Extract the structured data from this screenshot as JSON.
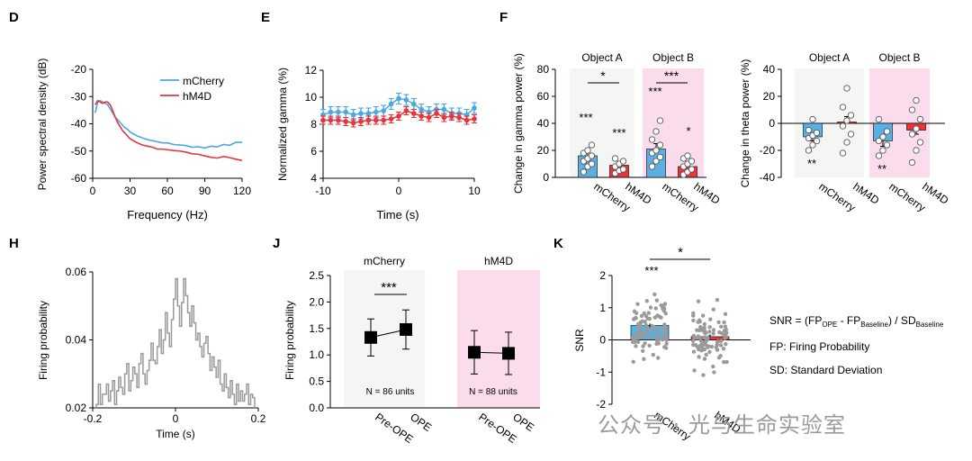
{
  "panel_letters": {
    "D": "D",
    "E": "E",
    "F": "F",
    "H": "H",
    "J": "J",
    "K": "K"
  },
  "chart_data": [
    {
      "id": "D",
      "type": "line",
      "xlabel": "Frequency (Hz)",
      "ylabel": "Power spectral density (dB)",
      "xlim": [
        0,
        120
      ],
      "ylim": [
        -60,
        -20
      ],
      "xticks": [
        "0",
        "30",
        "60",
        "90",
        "120"
      ],
      "yticks": [
        "-20",
        "-30",
        "-40",
        "-50",
        "-60"
      ],
      "legend": [
        "mCherry",
        "hM4D"
      ],
      "legend_position": "top-right",
      "colors": {
        "mCherry": "#4aa8e6",
        "hM4D": "#e8343b"
      },
      "series": [
        {
          "name": "mCherry",
          "x": [
            2,
            4,
            6,
            8,
            10,
            12,
            14,
            16,
            18,
            20,
            22,
            24,
            26,
            28,
            30,
            33,
            36,
            40,
            44,
            48,
            52,
            56,
            60,
            65,
            70,
            75,
            80,
            85,
            90,
            95,
            100,
            105,
            110,
            115,
            120
          ],
          "y": [
            -36,
            -32,
            -31.5,
            -32,
            -32.5,
            -33,
            -34.5,
            -36,
            -37.5,
            -38.5,
            -39.5,
            -40.5,
            -41.5,
            -42,
            -43,
            -43.8,
            -44.5,
            -45.2,
            -45.8,
            -46.2,
            -46.6,
            -47,
            -47,
            -47.6,
            -47.8,
            -48,
            -48.6,
            -48.4,
            -48.9,
            -48.2,
            -48.5,
            -47.6,
            -47.9,
            -46.8,
            -46.8
          ]
        },
        {
          "name": "hM4D",
          "x": [
            2,
            4,
            6,
            8,
            10,
            12,
            14,
            16,
            18,
            20,
            22,
            24,
            26,
            28,
            30,
            33,
            36,
            40,
            44,
            48,
            52,
            56,
            60,
            65,
            70,
            75,
            80,
            85,
            90,
            95,
            100,
            105,
            110,
            115,
            120
          ],
          "y": [
            -33,
            -31.5,
            -32,
            -32.5,
            -32,
            -32,
            -33,
            -35,
            -37.5,
            -39.5,
            -41,
            -42.5,
            -43.5,
            -44.5,
            -45.5,
            -46.3,
            -47,
            -47.8,
            -48.2,
            -48.6,
            -49.3,
            -49.3,
            -49.5,
            -49.8,
            -50,
            -50.4,
            -51,
            -51.2,
            -51.8,
            -52.3,
            -52.6,
            -52,
            -52.4,
            -53,
            -53.5
          ]
        }
      ]
    },
    {
      "id": "E",
      "type": "line",
      "xlabel": "Time (s)",
      "ylabel": "Normalized gamma (%)",
      "xlim": [
        -10,
        10
      ],
      "ylim": [
        4,
        12
      ],
      "xticks": [
        "-10",
        "0",
        "10"
      ],
      "yticks": [
        "12",
        "10",
        "8",
        "6",
        "4"
      ],
      "colors": {
        "mCherry": "#4aa8e6",
        "hM4D": "#e8343b"
      },
      "series": [
        {
          "name": "mCherry",
          "x": [
            -10,
            -9,
            -8,
            -7,
            -6,
            -5,
            -4,
            -3,
            -2,
            -1,
            0,
            1,
            2,
            3,
            4,
            5,
            6,
            7,
            8,
            9,
            10
          ],
          "y": [
            8.7,
            8.9,
            8.9,
            8.9,
            8.7,
            8.8,
            8.8,
            8.9,
            9.0,
            9.5,
            9.9,
            9.8,
            9.5,
            9.1,
            8.9,
            9.1,
            9.1,
            8.8,
            8.8,
            8.7,
            9.2
          ],
          "err": 0.4
        },
        {
          "name": "hM4D",
          "x": [
            -10,
            -9,
            -8,
            -7,
            -6,
            -5,
            -4,
            -3,
            -2,
            -1,
            0,
            1,
            2,
            3,
            4,
            5,
            6,
            7,
            8,
            9,
            10
          ],
          "y": [
            8.3,
            8.3,
            8.3,
            8.2,
            8.1,
            8.2,
            8.3,
            8.3,
            8.3,
            8.4,
            8.6,
            9.0,
            8.8,
            8.6,
            8.5,
            8.8,
            8.5,
            8.6,
            8.5,
            8.3,
            8.4
          ],
          "err": 0.3
        }
      ]
    },
    {
      "id": "F-gamma",
      "type": "bar",
      "ylabel": "Change in  gamma power (%)",
      "ylim": [
        0,
        80
      ],
      "yticks": [
        "80",
        "60",
        "40",
        "20",
        "0"
      ],
      "groups": [
        "Object  A",
        "Object B"
      ],
      "categories": [
        "mCherry",
        "hM4D",
        "mCherry",
        "hM4D"
      ],
      "values": [
        16,
        9,
        21,
        8
      ],
      "errors": [
        3,
        2,
        4,
        2
      ],
      "points": [
        [
          4,
          8,
          10,
          12,
          14,
          16,
          18,
          20,
          24
        ],
        [
          3,
          5,
          6,
          8,
          10,
          12,
          14
        ],
        [
          8,
          12,
          15,
          18,
          20,
          24,
          28,
          34,
          42
        ],
        [
          2,
          4,
          6,
          8,
          10,
          12,
          14,
          16
        ]
      ],
      "sig_top": [
        "*",
        "***"
      ],
      "sig_bar": [
        "***",
        "***",
        "***",
        "*"
      ],
      "colors": {
        "mCherry": "#5ab0e3",
        "hM4D": "#e8343b",
        "shade_A": "#f3f6f3",
        "shade_B": "#fadcec"
      }
    },
    {
      "id": "F-theta",
      "type": "bar",
      "ylabel": "Change in  theta power (%)",
      "ylim": [
        -40,
        40
      ],
      "yticks": [
        "40",
        "20",
        "0",
        "-20",
        "-40"
      ],
      "groups": [
        "Object  A",
        "Object B"
      ],
      "categories": [
        "mCherry",
        "hM4D",
        "mCherry",
        "hM4D"
      ],
      "values": [
        -10,
        1,
        -13,
        -5
      ],
      "errors": [
        3,
        4,
        4,
        3
      ],
      "points": [
        [
          -20,
          -16,
          -13,
          -11,
          -9,
          -7,
          -5,
          3
        ],
        [
          -22,
          -14,
          -8,
          -2,
          2,
          6,
          12,
          26
        ],
        [
          -24,
          -20,
          -16,
          -13,
          -10,
          -6,
          3
        ],
        [
          -29,
          -20,
          -14,
          -8,
          -4,
          3,
          10,
          17
        ]
      ],
      "sig_bar": [
        "**",
        "**"
      ],
      "colors": {
        "mCherry": "#5ab0e3",
        "hM4D": "#e8343b",
        "shade_A": "#f3f6f3",
        "shade_B": "#fadcec"
      }
    },
    {
      "id": "H",
      "type": "line",
      "xlabel": "Time (s)",
      "ylabel": "Firing probability",
      "xlim": [
        -0.2,
        0.2
      ],
      "ylim": [
        0.02,
        0.06
      ],
      "xticks": [
        "-0.2",
        "0",
        "0.2"
      ],
      "yticks": [
        "0.06",
        "0.04",
        "0.02"
      ],
      "color": "#9a9a9a",
      "values": [
        0.021,
        0.027,
        0.021,
        0.024,
        0.024,
        0.027,
        0.022,
        0.025,
        0.028,
        0.021,
        0.025,
        0.029,
        0.026,
        0.024,
        0.03,
        0.033,
        0.025,
        0.028,
        0.032,
        0.03,
        0.026,
        0.033,
        0.036,
        0.03,
        0.027,
        0.031,
        0.034,
        0.039,
        0.034,
        0.033,
        0.038,
        0.043,
        0.036,
        0.04,
        0.048,
        0.042,
        0.038,
        0.046,
        0.052,
        0.058,
        0.05,
        0.044,
        0.051,
        0.058,
        0.053,
        0.048,
        0.044,
        0.05,
        0.045,
        0.04,
        0.042,
        0.038,
        0.035,
        0.039,
        0.041,
        0.036,
        0.031,
        0.035,
        0.032,
        0.029,
        0.034,
        0.027,
        0.025,
        0.03,
        0.026,
        0.023,
        0.028,
        0.024,
        0.021,
        0.027,
        0.022,
        0.025,
        0.022,
        0.024,
        0.027,
        0.021,
        0.024,
        0.023
      ]
    },
    {
      "id": "J",
      "type": "line",
      "ylabel": "Firing probability",
      "ylim": [
        0,
        2.5
      ],
      "yticks": [
        "2.5",
        "2.0",
        "1.5",
        "1.0",
        "0.5",
        "0.0"
      ],
      "groups": [
        "mCherry",
        "hM4D"
      ],
      "categories": [
        "Pre-OPE",
        "OPE"
      ],
      "series": [
        {
          "name": "mCherry",
          "values": [
            1.33,
            1.48
          ],
          "errors": [
            0.35,
            0.37
          ]
        },
        {
          "name": "hM4D",
          "values": [
            1.05,
            1.03
          ],
          "errors": [
            0.41,
            0.4
          ]
        }
      ],
      "n_labels": [
        "N = 86 units",
        "N = 88 units"
      ],
      "sig": "***",
      "colors": {
        "shade_A": "#f3f6f3",
        "shade_B": "#fadcec"
      }
    },
    {
      "id": "K",
      "type": "bar",
      "ylabel": "SNR",
      "ylim": [
        -2,
        2
      ],
      "yticks": [
        "2",
        "1",
        "0",
        "-1",
        "-2"
      ],
      "categories": [
        "mCherry",
        "hM4D"
      ],
      "values": [
        0.45,
        0.1
      ],
      "errors": [
        0.06,
        0.05
      ],
      "sig_top": "*",
      "sig_bar": "***",
      "colors": {
        "mCherry": "#5ab0e3",
        "hM4D": "#e8343b",
        "dots": "#9a9a9a"
      },
      "formula": {
        "lhs": "SNR = (FP",
        "s1": "OPE",
        "mid": " - FP",
        "s2": "Baseline",
        "tail": ") / SD",
        "s3": "Baseline"
      },
      "notes": [
        "FP: Firing Probability",
        "SD: Standard Deviation"
      ]
    }
  ],
  "watermark": "公众号 · 光与生命实验室"
}
